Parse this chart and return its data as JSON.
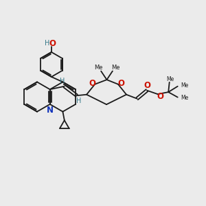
{
  "bg_color": "#ebebeb",
  "bond_color": "#1a1a1a",
  "n_color": "#1133bb",
  "o_color": "#cc1100",
  "oh_color": "#337788",
  "lw": 1.3,
  "figsize": [
    3.0,
    3.0
  ],
  "dpi": 100,
  "xlim": [
    0,
    10
  ],
  "ylim": [
    0,
    10
  ]
}
